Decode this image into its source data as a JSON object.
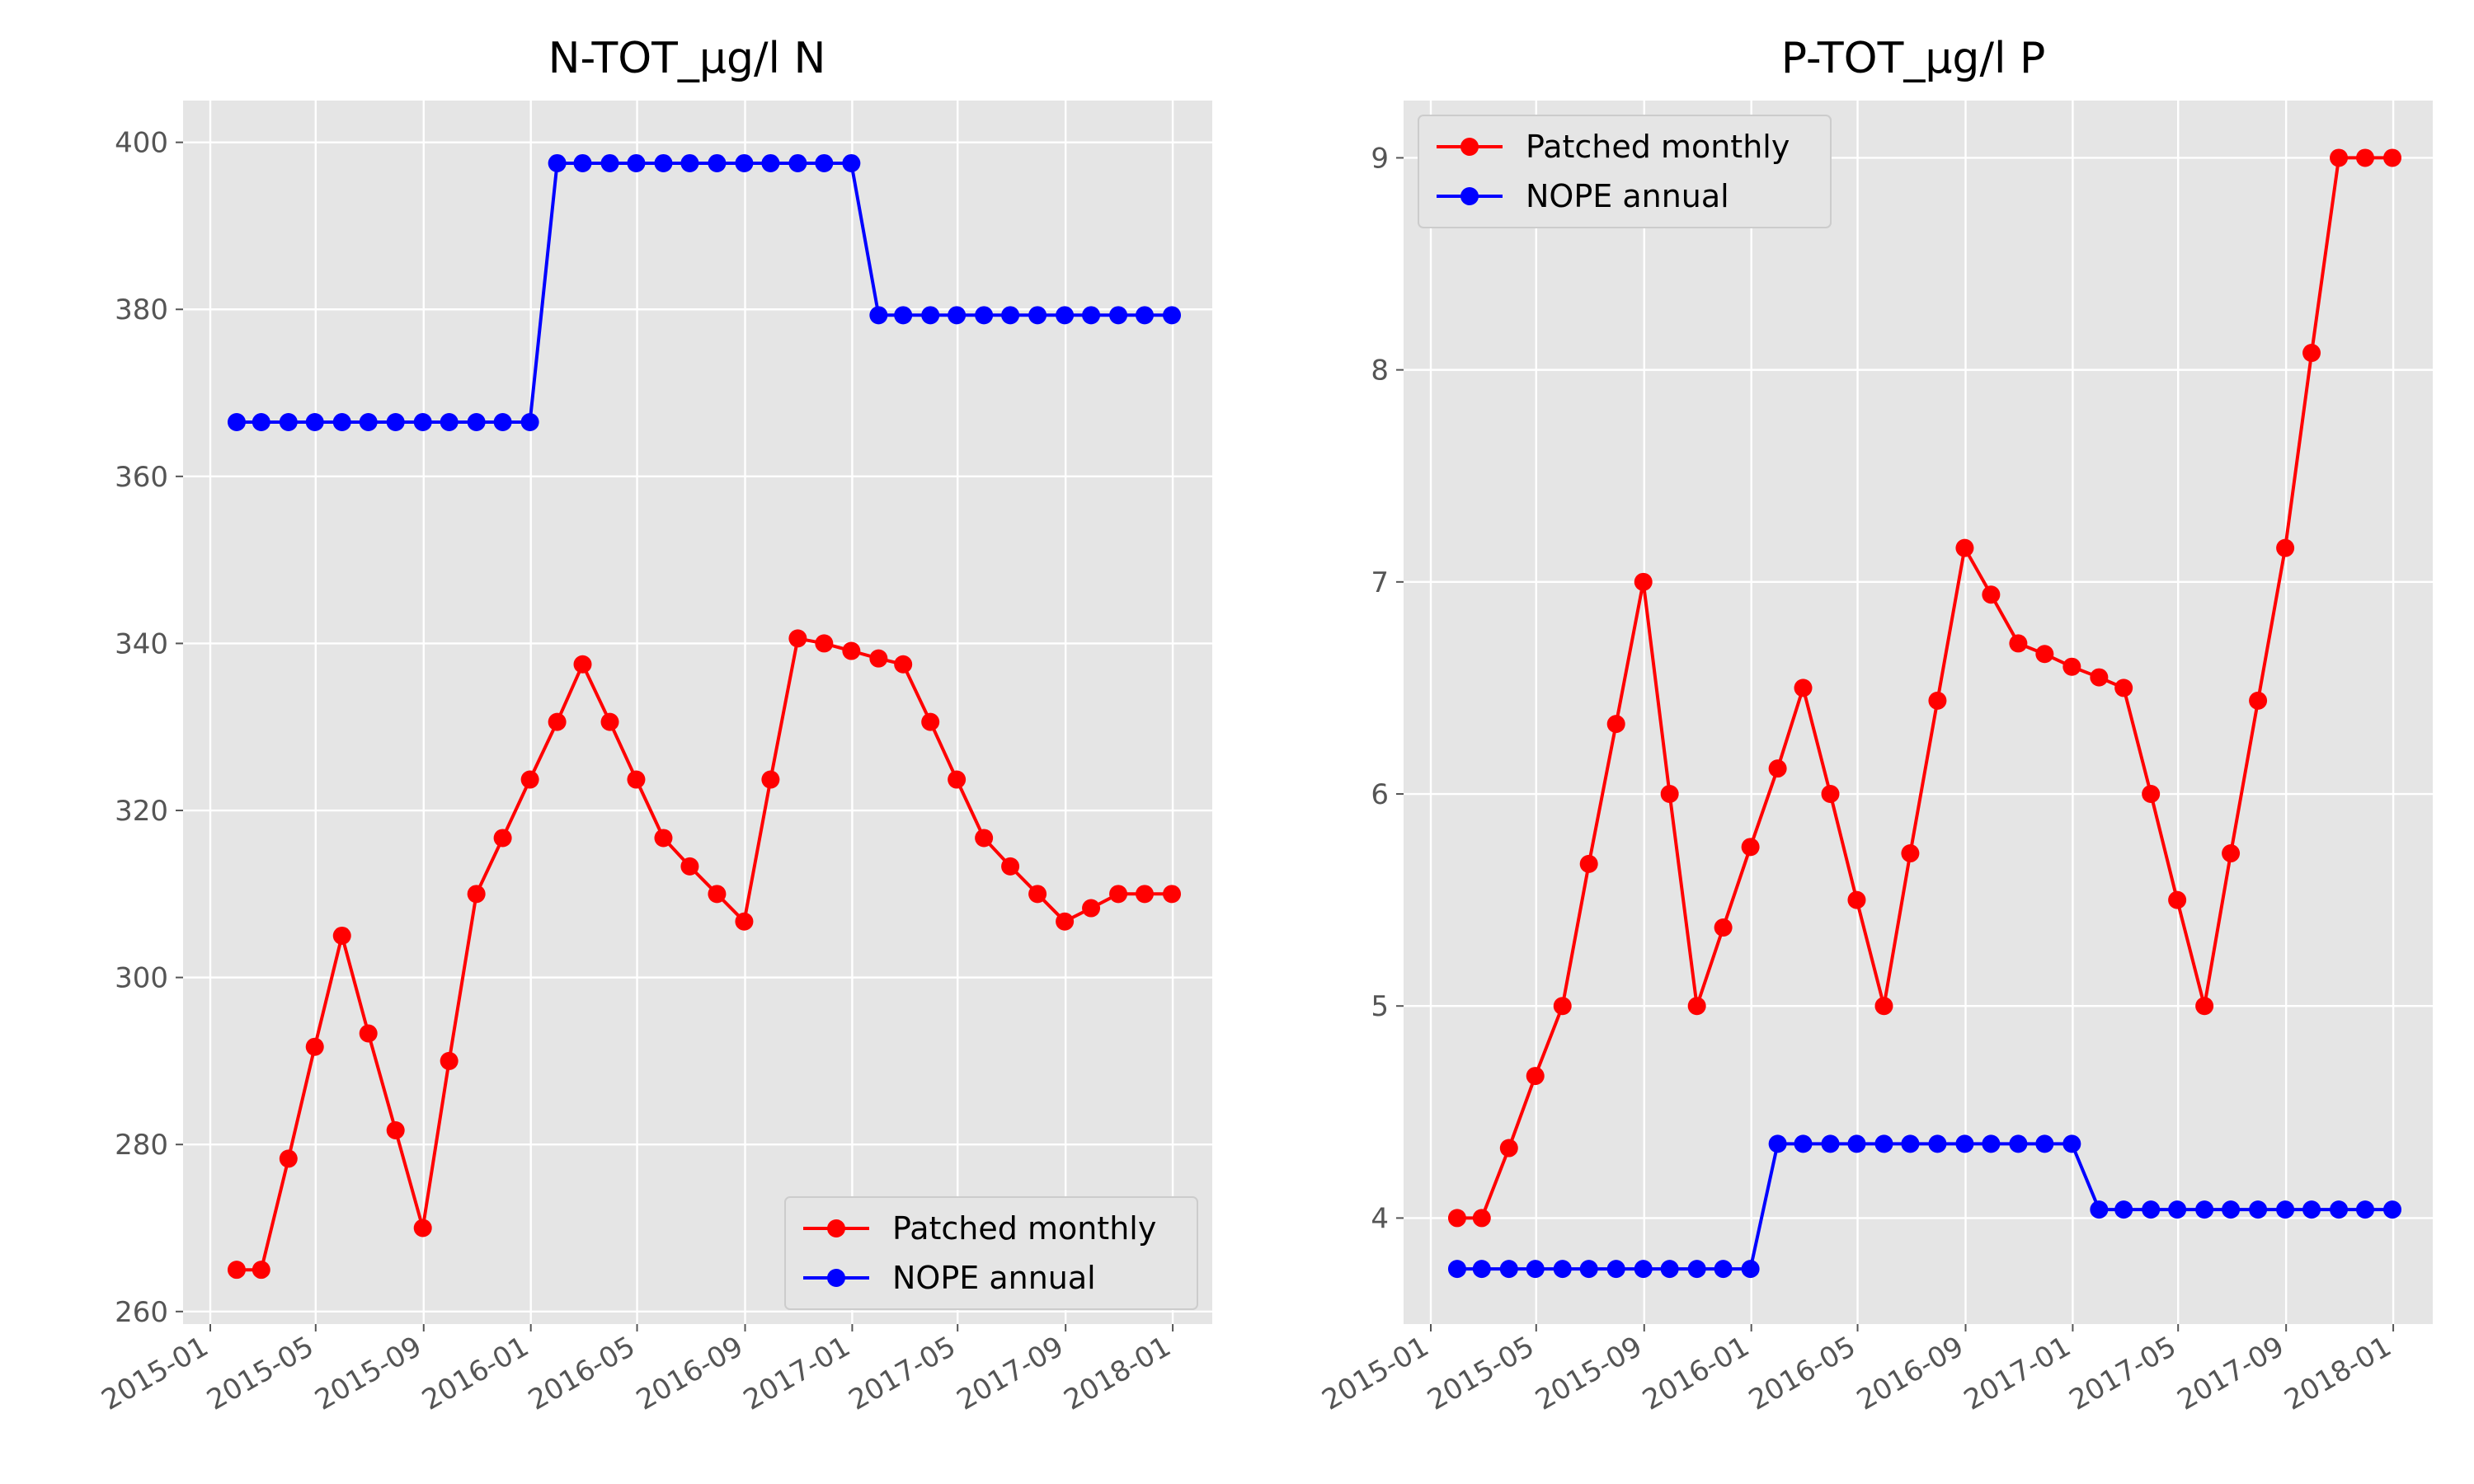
{
  "chart_data": [
    {
      "type": "line",
      "title": "N-TOT_µg/l N",
      "xlabel": "",
      "ylabel": "",
      "x_ticks": [
        "2015-01",
        "2015-05",
        "2015-09",
        "2016-01",
        "2016-05",
        "2016-09",
        "2017-01",
        "2017-05",
        "2017-09",
        "2018-01"
      ],
      "y_ticks": [
        260,
        280,
        300,
        320,
        340,
        360,
        380,
        400
      ],
      "xlim": [
        "2014-12-01",
        "2018-02-15"
      ],
      "ylim": [
        258.5,
        405
      ],
      "grid": true,
      "legend_position": "lower-right",
      "x": [
        "2015-01-31",
        "2015-02-28",
        "2015-03-31",
        "2015-04-30",
        "2015-05-31",
        "2015-06-30",
        "2015-07-31",
        "2015-08-31",
        "2015-09-30",
        "2015-10-31",
        "2015-11-30",
        "2015-12-31",
        "2016-01-31",
        "2016-02-29",
        "2016-03-31",
        "2016-04-30",
        "2016-05-31",
        "2016-06-30",
        "2016-07-31",
        "2016-08-31",
        "2016-09-30",
        "2016-10-31",
        "2016-11-30",
        "2016-12-31",
        "2017-01-31",
        "2017-02-28",
        "2017-03-31",
        "2017-04-30",
        "2017-05-31",
        "2017-06-30",
        "2017-07-31",
        "2017-08-31",
        "2017-09-30",
        "2017-10-31",
        "2017-11-30",
        "2017-12-31"
      ],
      "series": [
        {
          "name": "Patched monthly",
          "color": "#ff0000",
          "values": [
            265,
            265,
            278.3,
            291.7,
            305,
            293.3,
            281.7,
            270,
            290,
            310,
            316.7,
            323.7,
            330.6,
            337.5,
            330.6,
            323.7,
            316.7,
            313.3,
            310,
            306.7,
            323.7,
            340.6,
            340,
            339.1,
            338.2,
            337.5,
            330.6,
            323.7,
            316.7,
            313.3,
            310,
            306.7,
            308.3,
            310,
            310,
            310
          ]
        },
        {
          "name": "NOPE annual",
          "color": "#0000ff",
          "values": [
            366.5,
            366.5,
            366.5,
            366.5,
            366.5,
            366.5,
            366.5,
            366.5,
            366.5,
            366.5,
            366.5,
            366.5,
            397.5,
            397.5,
            397.5,
            397.5,
            397.5,
            397.5,
            397.5,
            397.5,
            397.5,
            397.5,
            397.5,
            397.5,
            379.3,
            379.3,
            379.3,
            379.3,
            379.3,
            379.3,
            379.3,
            379.3,
            379.3,
            379.3,
            379.3,
            379.3
          ]
        }
      ]
    },
    {
      "type": "line",
      "title": "P-TOT_µg/l P",
      "xlabel": "",
      "ylabel": "",
      "x_ticks": [
        "2015-01",
        "2015-05",
        "2015-09",
        "2016-01",
        "2016-05",
        "2016-09",
        "2017-01",
        "2017-05",
        "2017-09",
        "2018-01"
      ],
      "y_ticks": [
        4,
        5,
        6,
        7,
        8,
        9
      ],
      "xlim": [
        "2014-12-01",
        "2018-02-15"
      ],
      "ylim": [
        3.5,
        9.27
      ],
      "grid": true,
      "legend_position": "upper-left",
      "x": [
        "2015-01-31",
        "2015-02-28",
        "2015-03-31",
        "2015-04-30",
        "2015-05-31",
        "2015-06-30",
        "2015-07-31",
        "2015-08-31",
        "2015-09-30",
        "2015-10-31",
        "2015-11-30",
        "2015-12-31",
        "2016-01-31",
        "2016-02-29",
        "2016-03-31",
        "2016-04-30",
        "2016-05-31",
        "2016-06-30",
        "2016-07-31",
        "2016-08-31",
        "2016-09-30",
        "2016-10-31",
        "2016-11-30",
        "2016-12-31",
        "2017-01-31",
        "2017-02-28",
        "2017-03-31",
        "2017-04-30",
        "2017-05-31",
        "2017-06-30",
        "2017-07-31",
        "2017-08-31",
        "2017-09-30",
        "2017-10-31",
        "2017-11-30",
        "2017-12-31"
      ],
      "series": [
        {
          "name": "Patched monthly",
          "color": "#ff0000",
          "values": [
            4,
            4,
            4.33,
            4.67,
            5,
            5.67,
            6.33,
            7,
            6,
            5,
            5.37,
            5.75,
            6.12,
            6.5,
            6,
            5.5,
            5,
            5.72,
            6.44,
            7.16,
            6.94,
            6.71,
            6.66,
            6.6,
            6.55,
            6.5,
            6,
            5.5,
            5,
            5.72,
            6.44,
            7.16,
            8.08,
            9,
            9,
            9
          ]
        },
        {
          "name": "NOPE annual",
          "color": "#0000ff",
          "values": [
            3.76,
            3.76,
            3.76,
            3.76,
            3.76,
            3.76,
            3.76,
            3.76,
            3.76,
            3.76,
            3.76,
            3.76,
            4.35,
            4.35,
            4.35,
            4.35,
            4.35,
            4.35,
            4.35,
            4.35,
            4.35,
            4.35,
            4.35,
            4.35,
            4.04,
            4.04,
            4.04,
            4.04,
            4.04,
            4.04,
            4.04,
            4.04,
            4.04,
            4.04,
            4.04,
            4.04
          ]
        }
      ]
    }
  ]
}
